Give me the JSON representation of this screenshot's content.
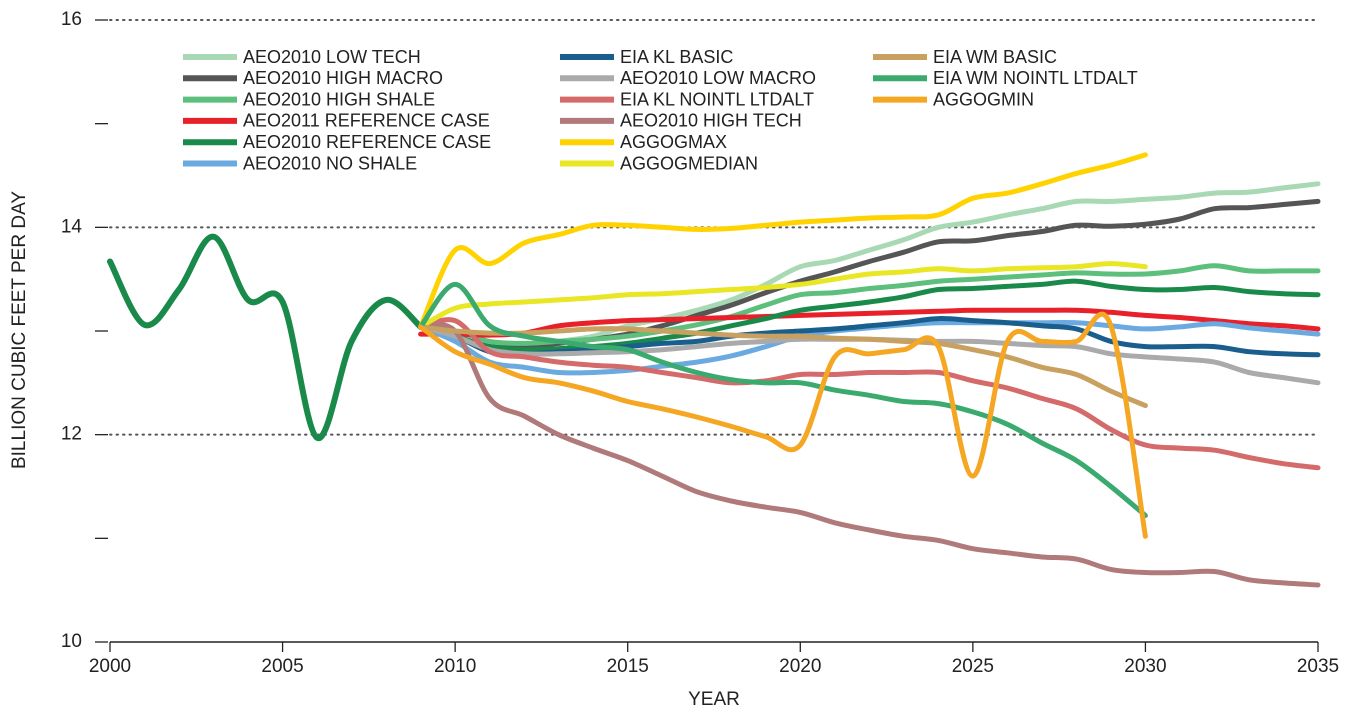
{
  "chart_data": {
    "type": "line",
    "y_label": "BILLION CUBIC FEET PER DAY",
    "x_label": "YEAR",
    "xlim": [
      2000,
      2035
    ],
    "xticks": [
      2000,
      2005,
      2010,
      2015,
      2020,
      2025,
      2030,
      2035
    ],
    "ylim": [
      10,
      16
    ],
    "yticks": [
      10,
      12,
      14,
      16
    ],
    "yminor_ticks": [
      11,
      13,
      15
    ],
    "grid": true,
    "x": [
      2000,
      2001,
      2002,
      2003,
      2004,
      2005,
      2006,
      2007,
      2008,
      2009,
      2010,
      2011,
      2012,
      2013,
      2014,
      2015,
      2016,
      2017,
      2018,
      2019,
      2020,
      2021,
      2022,
      2023,
      2024,
      2025,
      2026,
      2027,
      2028,
      2029,
      2030,
      2031,
      2032,
      2033,
      2034,
      2035
    ],
    "series": [
      {
        "color": "#1a8a4a",
        "values": [
          13.67,
          13.06,
          13.4,
          13.91,
          13.3,
          13.28,
          11.97,
          12.9,
          13.3,
          13.04,
          null,
          null,
          null,
          null,
          null,
          null,
          null,
          null,
          null,
          null,
          null,
          null,
          null,
          null,
          null,
          null,
          null,
          null,
          null,
          null,
          null,
          null,
          null,
          null,
          null,
          null
        ]
      },
      {
        "name": "AEO2010 LOW TECH",
        "color": "#a8d8b4",
        "values": [
          null,
          null,
          null,
          null,
          null,
          null,
          null,
          null,
          null,
          13.04,
          12.95,
          12.85,
          12.85,
          12.9,
          12.95,
          13.05,
          13.12,
          13.2,
          13.3,
          13.45,
          13.62,
          13.68,
          13.78,
          13.88,
          14.0,
          14.05,
          14.12,
          14.18,
          14.25,
          14.25,
          14.27,
          14.29,
          14.33,
          14.34,
          14.38,
          14.42
        ]
      },
      {
        "name": "AEO2010 HIGH MACRO",
        "color": "#555555",
        "values": [
          null,
          null,
          null,
          null,
          null,
          null,
          null,
          null,
          null,
          13.04,
          12.95,
          12.85,
          12.85,
          12.88,
          12.92,
          12.97,
          13.05,
          13.15,
          13.25,
          13.37,
          13.48,
          13.57,
          13.67,
          13.76,
          13.86,
          13.87,
          13.92,
          13.96,
          14.02,
          14.01,
          14.03,
          14.08,
          14.18,
          14.19,
          14.22,
          14.25
        ]
      },
      {
        "name": "AEO2010 HIGH SHALE",
        "color": "#5cbf7c",
        "values": [
          null,
          null,
          null,
          null,
          null,
          null,
          null,
          null,
          null,
          13.04,
          13.0,
          12.9,
          12.88,
          12.9,
          12.92,
          12.95,
          13.0,
          13.06,
          13.14,
          13.25,
          13.35,
          13.37,
          13.41,
          13.44,
          13.48,
          13.5,
          13.52,
          13.54,
          13.56,
          13.55,
          13.55,
          13.58,
          13.63,
          13.58,
          13.58,
          13.58
        ]
      },
      {
        "name": "AEO2011 REFERENCE CASE",
        "color": "#e8202a",
        "values": [
          null,
          null,
          null,
          null,
          null,
          null,
          null,
          null,
          null,
          12.97,
          12.97,
          12.96,
          12.98,
          13.05,
          13.08,
          13.1,
          13.11,
          13.12,
          13.13,
          13.14,
          13.15,
          13.16,
          13.17,
          13.18,
          13.19,
          13.2,
          13.2,
          13.2,
          13.2,
          13.18,
          13.15,
          13.13,
          13.1,
          13.07,
          13.05,
          13.02
        ]
      },
      {
        "name": "AEO2010 REFERENCE CASE",
        "color": "#1a8a4a",
        "values": [
          null,
          null,
          null,
          null,
          null,
          null,
          null,
          null,
          null,
          13.04,
          12.95,
          12.85,
          12.82,
          12.83,
          12.85,
          12.88,
          12.93,
          12.98,
          13.05,
          13.12,
          13.2,
          13.24,
          13.28,
          13.33,
          13.4,
          13.41,
          13.43,
          13.45,
          13.48,
          13.43,
          13.4,
          13.4,
          13.42,
          13.38,
          13.36,
          13.35
        ]
      },
      {
        "name": "AEO2010 NO SHALE",
        "color": "#6aaae0",
        "values": [
          null,
          null,
          null,
          null,
          null,
          null,
          null,
          null,
          null,
          13.04,
          12.9,
          12.7,
          12.65,
          12.6,
          12.6,
          12.62,
          12.66,
          12.7,
          12.76,
          12.85,
          12.95,
          13.0,
          13.03,
          13.06,
          13.08,
          13.08,
          13.08,
          13.08,
          13.08,
          13.05,
          13.02,
          13.04,
          13.07,
          13.03,
          13.0,
          12.97
        ]
      },
      {
        "name": "EIA KL BASIC",
        "color": "#1a5e8e",
        "values": [
          null,
          null,
          null,
          null,
          null,
          null,
          null,
          null,
          null,
          13.04,
          12.95,
          12.8,
          12.78,
          12.8,
          12.82,
          12.85,
          12.88,
          12.9,
          12.95,
          12.98,
          13.0,
          13.02,
          13.05,
          13.08,
          13.12,
          13.1,
          13.08,
          13.05,
          13.02,
          12.9,
          12.85,
          12.85,
          12.85,
          12.8,
          12.78,
          12.77
        ]
      },
      {
        "name": "AEO2010 LOW MACRO",
        "color": "#aaaaaa",
        "values": [
          null,
          null,
          null,
          null,
          null,
          null,
          null,
          null,
          null,
          13.04,
          12.95,
          12.82,
          12.78,
          12.78,
          12.79,
          12.8,
          12.82,
          12.85,
          12.88,
          12.9,
          12.92,
          12.92,
          12.92,
          12.91,
          12.9,
          12.9,
          12.88,
          12.86,
          12.85,
          12.78,
          12.75,
          12.73,
          12.7,
          12.6,
          12.55,
          12.5
        ]
      },
      {
        "name": "EIA KL NOINTL LTDALT",
        "color": "#d46a6a",
        "values": [
          null,
          null,
          null,
          null,
          null,
          null,
          null,
          null,
          null,
          13.04,
          13.1,
          12.8,
          12.75,
          12.7,
          12.67,
          12.65,
          12.6,
          12.55,
          12.5,
          12.52,
          12.58,
          12.58,
          12.6,
          12.6,
          12.6,
          12.52,
          12.45,
          12.35,
          12.25,
          12.05,
          11.9,
          11.87,
          11.85,
          11.78,
          11.72,
          11.68
        ]
      },
      {
        "name": "AEO2010 HIGH TECH",
        "color": "#b07a7a",
        "values": [
          null,
          null,
          null,
          null,
          null,
          null,
          null,
          null,
          null,
          13.04,
          13.0,
          12.35,
          12.18,
          12.0,
          11.87,
          11.75,
          11.6,
          11.45,
          11.36,
          11.3,
          11.25,
          11.15,
          11.08,
          11.02,
          10.98,
          10.9,
          10.86,
          10.82,
          10.8,
          10.7,
          10.67,
          10.67,
          10.68,
          10.6,
          10.57,
          10.55
        ]
      },
      {
        "name": "AGGOGMAX",
        "color": "#ffd200",
        "values": [
          null,
          null,
          null,
          null,
          null,
          null,
          null,
          null,
          null,
          13.04,
          13.78,
          13.65,
          13.85,
          13.93,
          14.02,
          14.02,
          14.0,
          13.98,
          13.99,
          14.02,
          14.05,
          14.07,
          14.09,
          14.1,
          14.12,
          14.28,
          14.33,
          14.42,
          14.52,
          14.6,
          14.7,
          null,
          null,
          null,
          null,
          null
        ]
      },
      {
        "name": "AGGOGMEDIAN",
        "color": "#e8e625",
        "values": [
          null,
          null,
          null,
          null,
          null,
          null,
          null,
          null,
          null,
          13.04,
          13.22,
          13.26,
          13.28,
          13.3,
          13.32,
          13.35,
          13.36,
          13.38,
          13.4,
          13.42,
          13.45,
          13.5,
          13.55,
          13.57,
          13.6,
          13.58,
          13.6,
          13.61,
          13.62,
          13.65,
          13.62,
          null,
          null,
          null,
          null,
          null
        ]
      },
      {
        "name": "EIA WM BASIC",
        "color": "#c8a060",
        "values": [
          null,
          null,
          null,
          null,
          null,
          null,
          null,
          null,
          null,
          13.04,
          13.0,
          12.98,
          12.98,
          13.0,
          13.02,
          13.02,
          13.0,
          12.98,
          12.96,
          12.95,
          12.95,
          12.93,
          12.92,
          12.9,
          12.88,
          12.82,
          12.75,
          12.65,
          12.58,
          12.42,
          12.28,
          null,
          null,
          null,
          null,
          null
        ]
      },
      {
        "name": "EIA WM NOINTL LTDALT",
        "color": "#3aaa6e",
        "values": [
          null,
          null,
          null,
          null,
          null,
          null,
          null,
          null,
          null,
          13.04,
          13.45,
          13.05,
          12.95,
          12.9,
          12.85,
          12.82,
          12.7,
          12.6,
          12.53,
          12.5,
          12.5,
          12.43,
          12.38,
          12.32,
          12.3,
          12.22,
          12.1,
          11.92,
          11.75,
          11.5,
          11.22,
          null,
          null,
          null,
          null,
          null
        ]
      },
      {
        "name": "AGGOGMIN",
        "color": "#f5a623",
        "values": [
          null,
          null,
          null,
          null,
          null,
          null,
          null,
          null,
          null,
          13.04,
          12.8,
          12.68,
          12.55,
          12.5,
          12.42,
          12.32,
          12.25,
          12.17,
          12.08,
          11.98,
          11.9,
          12.75,
          12.78,
          12.82,
          12.85,
          11.6,
          12.9,
          12.9,
          12.9,
          13.05,
          11.02,
          null,
          null,
          null,
          null,
          null
        ]
      }
    ]
  }
}
